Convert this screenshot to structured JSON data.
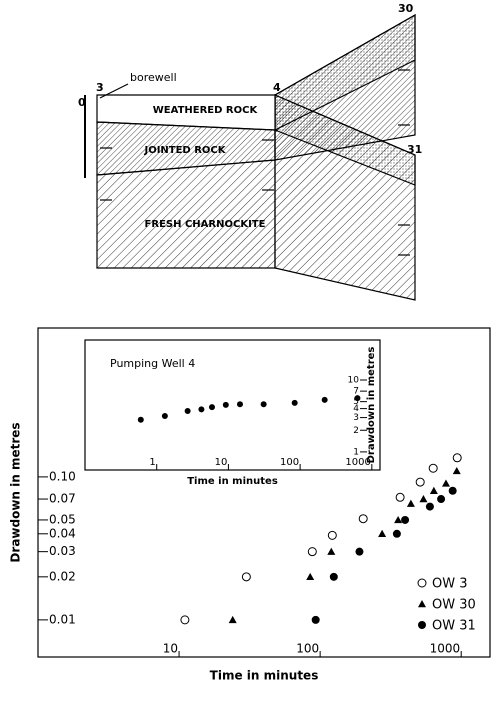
{
  "diagram": {
    "well_3": "3",
    "borewell": "borewell",
    "scale": "0",
    "well_4": "4",
    "well_30": "30",
    "well_31": "31",
    "layers": [
      "WEATHERED  ROCK",
      "JOINTED ROCK",
      "FRESH CHARNOCKITE"
    ]
  },
  "chart_data": [
    {
      "type": "scatter",
      "x_label": "Time in minutes",
      "y_label": "Drawdown in metres",
      "xscale": "log",
      "yscale": "log",
      "xlim": [
        1,
        1600
      ],
      "ylim": [
        0.0055,
        1.1
      ],
      "xticks": [
        10,
        100,
        1000
      ],
      "yticks": [
        {
          "value": 0.1,
          "label": "0.10"
        },
        0.07,
        0.05,
        0.04,
        0.03,
        0.02,
        0.01
      ],
      "legend": "lower-right",
      "series": [
        {
          "name": "OW 3",
          "color": "#000000",
          "marker": "open-circle",
          "x": [
            11,
            30,
            88,
            122,
            202,
            369,
            512,
            633,
            937
          ],
          "values": [
            0.01,
            0.02,
            0.03,
            0.039,
            0.051,
            0.072,
            0.092,
            0.115,
            0.136
          ]
        },
        {
          "name": "OW 30",
          "color": "#000000",
          "marker": "triangle",
          "x": [
            24,
            85,
            120,
            275,
            357,
            440,
            540,
            640,
            780,
            930
          ],
          "values": [
            0.01,
            0.02,
            0.03,
            0.04,
            0.05,
            0.065,
            0.07,
            0.08,
            0.09,
            0.11
          ]
        },
        {
          "name": "OW 31",
          "color": "#000000",
          "marker": "circle",
          "x": [
            93,
            125,
            190,
            350,
            400,
            600,
            720,
            870
          ],
          "values": [
            0.01,
            0.02,
            0.03,
            0.04,
            0.05,
            0.062,
            0.07,
            0.08
          ]
        }
      ]
    },
    {
      "type": "scatter",
      "annotation": "Pumping Well 4",
      "x_label": "Time in minutes",
      "y_label": "Drawdown in metres",
      "xscale": "log",
      "yscale": "log",
      "xlim": [
        0.1,
        1300
      ],
      "ylim": [
        0.56,
        36
      ],
      "xticks": [
        1,
        10,
        100,
        1000
      ],
      "yticks": [
        10,
        7,
        5,
        4,
        3,
        2,
        1
      ],
      "series": [
        {
          "color": "#000000",
          "marker": "circle",
          "x": [
            0.6,
            1.3,
            2.7,
            4.2,
            5.9,
            9.2,
            14.5,
            31,
            84,
            220,
            630
          ],
          "values": [
            2.8,
            3.16,
            3.71,
            3.9,
            4.2,
            4.5,
            4.6,
            4.6,
            4.8,
            5.3,
            5.6
          ]
        }
      ]
    }
  ]
}
